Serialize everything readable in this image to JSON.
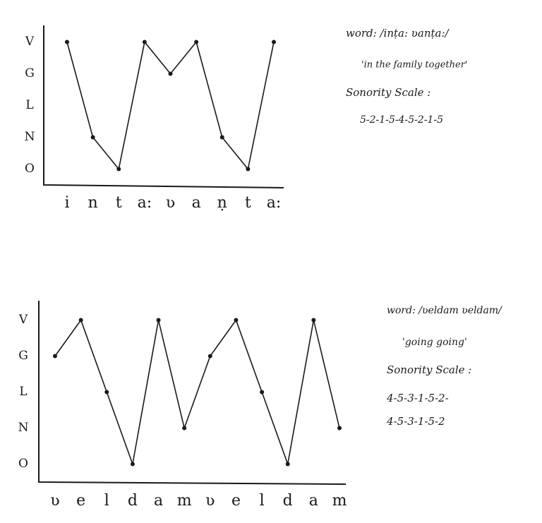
{
  "chart_data": [
    {
      "type": "line",
      "color": "#1a1a1a",
      "categories": [
        "i",
        "n",
        "t",
        "a:",
        "ʋ",
        "a",
        "ṇ",
        "t",
        "a:"
      ],
      "values": [
        5,
        2,
        1,
        5,
        4,
        5,
        2,
        1,
        5
      ],
      "ylim": [
        0.5,
        5.5
      ],
      "yticks": [
        {
          "value": 1,
          "label": "O"
        },
        {
          "value": 2,
          "label": "N"
        },
        {
          "value": 3,
          "label": "L"
        },
        {
          "value": 4,
          "label": "G"
        },
        {
          "value": 5,
          "label": "V"
        }
      ],
      "annotations": [
        "word: /inṭa: ʋanṭa:/",
        "'in the family together'",
        "Sonority Scale :",
        "5-2-1-5-4-5-2-1-5"
      ]
    },
    {
      "type": "line",
      "color": "#1a1a1a",
      "categories": [
        "ʋ",
        "e",
        "l",
        "d",
        "a",
        "m",
        "ʋ",
        "e",
        "l",
        "d",
        "a",
        "m"
      ],
      "values": [
        4,
        5,
        3,
        1,
        5,
        2,
        4,
        5,
        3,
        1,
        5,
        2
      ],
      "ylim": [
        0.5,
        5.5
      ],
      "yticks": [
        {
          "value": 1,
          "label": "O"
        },
        {
          "value": 2,
          "label": "N"
        },
        {
          "value": 3,
          "label": "L"
        },
        {
          "value": 4,
          "label": "G"
        },
        {
          "value": 5,
          "label": "V"
        }
      ],
      "annotations": [
        "word: /ʋeldam ʋeldam/",
        "'going going'",
        "Sonority Scale :",
        "4-5-3-1-5-2-",
        "4-5-3-1-5-2"
      ]
    }
  ]
}
